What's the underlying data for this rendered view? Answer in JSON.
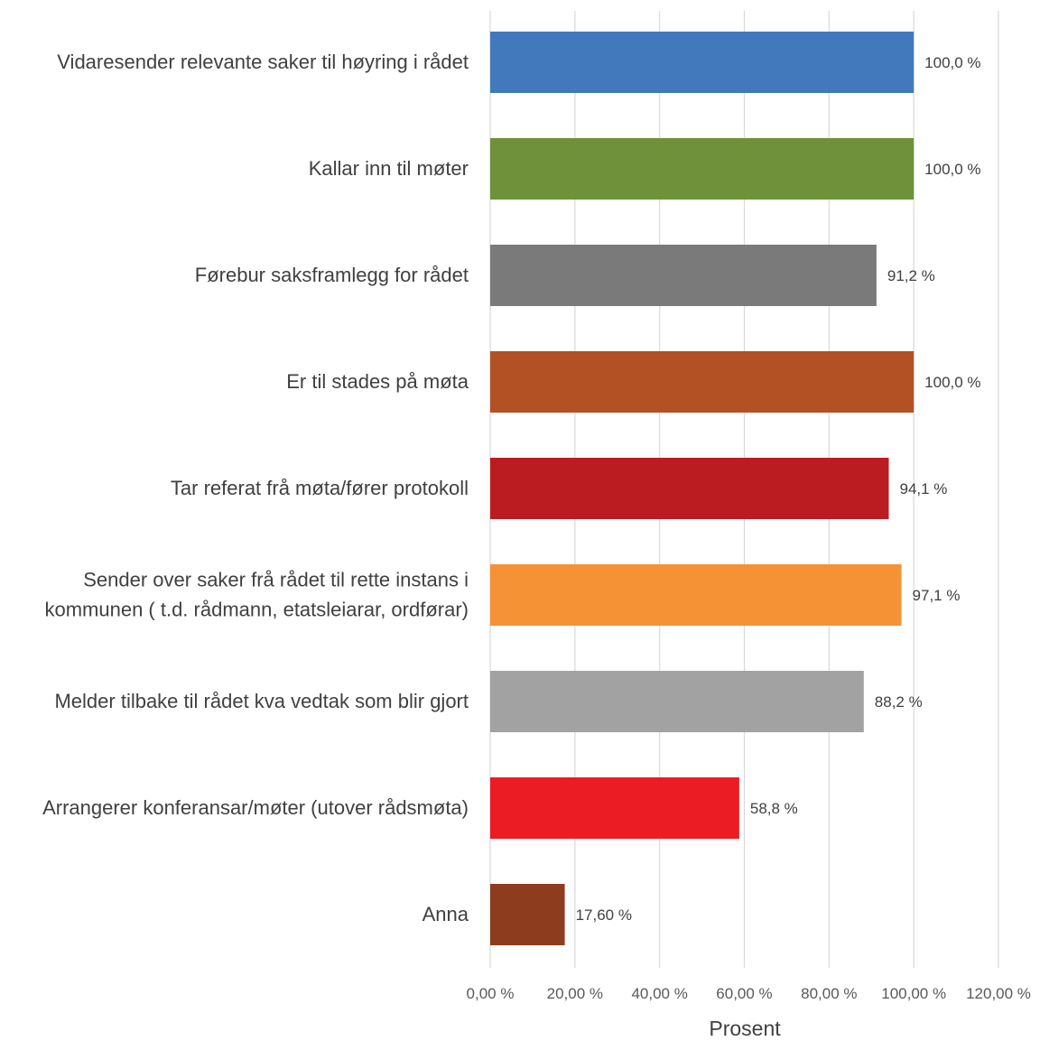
{
  "chart_data": {
    "type": "bar",
    "orientation": "horizontal",
    "categories": [
      "Vidaresender relevante saker til høyring i rådet",
      "Kallar inn til møter",
      "Førebur saksframlegg for rådet",
      "Er til stades på møta",
      "Tar referat frå møta/fører protokoll",
      "Sender over saker frå rådet til rette instans i kommunen ( t.d. rådmann, etatsleiarar, ordførar)",
      "Melder tilbake til rådet kva vedtak som blir gjort",
      "Arrangerer konferansar/møter (utover rådsmøta)",
      "Anna"
    ],
    "category_lines": [
      [
        "Vidaresender relevante saker til høyring i rådet"
      ],
      [
        "Kallar inn til møter"
      ],
      [
        "Førebur saksframlegg for rådet"
      ],
      [
        "Er til stades på møta"
      ],
      [
        "Tar referat frå møta/fører protokoll"
      ],
      [
        "Sender over saker frå rådet til rette instans i",
        "kommunen ( t.d. rådmann, etatsleiarar, ordførar)"
      ],
      [
        "Melder tilbake til rådet kva vedtak som blir gjort"
      ],
      [
        "Arrangerer konferansar/møter (utover rådsmøta)"
      ],
      [
        "Anna"
      ]
    ],
    "values": [
      100.0,
      100.0,
      91.2,
      100.0,
      94.1,
      97.1,
      88.2,
      58.8,
      17.6
    ],
    "value_labels": [
      "100,0 %",
      "100,0 %",
      "91,2 %",
      "100,0 %",
      "94,1 %",
      "97,1 %",
      "88,2 %",
      "58,8 %",
      "17,60 %"
    ],
    "colors": [
      "#4279bd",
      "#6f913a",
      "#7a7a7a",
      "#b35125",
      "#bb1c22",
      "#f59236",
      "#a2a2a2",
      "#ec1c24",
      "#8d3d1e"
    ],
    "title": "",
    "xlabel": "Prosent",
    "ylabel": "",
    "xlim": [
      0,
      120
    ],
    "xticks": [
      0,
      20,
      40,
      60,
      80,
      100,
      120
    ],
    "xtick_labels": [
      "0,00 %",
      "20,00 %",
      "40,00 %",
      "60,00 %",
      "80,00 %",
      "100,00 %",
      "120,00 %"
    ],
    "grid": true,
    "legend": "none"
  }
}
